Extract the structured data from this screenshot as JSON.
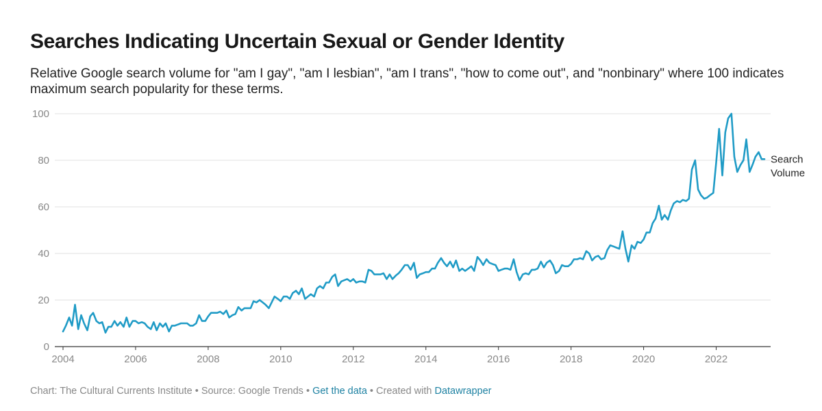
{
  "header": {
    "title": "Searches Indicating Uncertain Sexual or Gender Identity",
    "subtitle": "Relative Google search volume for \"am I gay\", \"am I lesbian\", \"am I trans\", \"how to come out\", and \"nonbinary\" where 100 indicates maximum search popularity for these terms."
  },
  "footer": {
    "credit": "Chart: The Cultural Currents Institute",
    "sep1": " • ",
    "source": "Source: Google Trends",
    "sep2": " • ",
    "get_data": "Get the data",
    "sep3": " • ",
    "created_with": "Created with ",
    "datawrapper": "Datawrapper"
  },
  "colors": {
    "line": "#1f9bc6",
    "grid": "#e2e2e2",
    "axis": "#333333",
    "link": "#1d81a2"
  },
  "chart_data": {
    "type": "line",
    "x_unit": "year",
    "xlim": [
      2004.0,
      2023.5
    ],
    "ylim": [
      0,
      100
    ],
    "x_ticks": [
      2004,
      2006,
      2008,
      2010,
      2012,
      2014,
      2016,
      2018,
      2020,
      2022
    ],
    "x_tick_labels": [
      "2004",
      "2006",
      "2008",
      "2010",
      "2012",
      "2014",
      "2016",
      "2018",
      "2020",
      "2022"
    ],
    "y_ticks": [
      0,
      20,
      40,
      60,
      80,
      100
    ],
    "y_tick_labels": [
      "0",
      "20",
      "40",
      "60",
      "80",
      "100"
    ],
    "grid": "horizontal",
    "series": [
      {
        "name": "Search Volume",
        "label_lines": [
          "Search",
          "Volume"
        ],
        "values": [
          [
            2004.0,
            6.5
          ],
          [
            2004.08,
            9
          ],
          [
            2004.17,
            12.5
          ],
          [
            2004.25,
            9
          ],
          [
            2004.33,
            18
          ],
          [
            2004.42,
            7.5
          ],
          [
            2004.5,
            13.5
          ],
          [
            2004.58,
            10
          ],
          [
            2004.67,
            7
          ],
          [
            2004.75,
            13
          ],
          [
            2004.83,
            14.5
          ],
          [
            2004.92,
            11
          ],
          [
            2005.0,
            10
          ],
          [
            2005.08,
            10.5
          ],
          [
            2005.17,
            6
          ],
          [
            2005.25,
            8.5
          ],
          [
            2005.33,
            8.5
          ],
          [
            2005.42,
            11
          ],
          [
            2005.5,
            9
          ],
          [
            2005.58,
            10.5
          ],
          [
            2005.67,
            8.5
          ],
          [
            2005.75,
            12.5
          ],
          [
            2005.83,
            8.5
          ],
          [
            2005.92,
            11
          ],
          [
            2006.0,
            11
          ],
          [
            2006.08,
            10
          ],
          [
            2006.17,
            10.5
          ],
          [
            2006.25,
            10
          ],
          [
            2006.33,
            8.5
          ],
          [
            2006.42,
            7.5
          ],
          [
            2006.5,
            10.5
          ],
          [
            2006.58,
            7
          ],
          [
            2006.67,
            10
          ],
          [
            2006.75,
            8.5
          ],
          [
            2006.83,
            10
          ],
          [
            2006.92,
            6.5
          ],
          [
            2007.0,
            9
          ],
          [
            2007.08,
            9
          ],
          [
            2007.17,
            9.5
          ],
          [
            2007.25,
            10
          ],
          [
            2007.33,
            10
          ],
          [
            2007.42,
            10
          ],
          [
            2007.5,
            9
          ],
          [
            2007.58,
            9
          ],
          [
            2007.67,
            10
          ],
          [
            2007.75,
            13.5
          ],
          [
            2007.83,
            11
          ],
          [
            2007.92,
            11
          ],
          [
            2008.0,
            13
          ],
          [
            2008.08,
            14.5
          ],
          [
            2008.17,
            14.5
          ],
          [
            2008.25,
            14.5
          ],
          [
            2008.33,
            15
          ],
          [
            2008.42,
            14
          ],
          [
            2008.5,
            15.5
          ],
          [
            2008.58,
            12.5
          ],
          [
            2008.67,
            13.5
          ],
          [
            2008.75,
            14
          ],
          [
            2008.83,
            17
          ],
          [
            2008.92,
            15.5
          ],
          [
            2009.0,
            16.5
          ],
          [
            2009.08,
            16.5
          ],
          [
            2009.17,
            16.5
          ],
          [
            2009.25,
            19.5
          ],
          [
            2009.33,
            19
          ],
          [
            2009.42,
            20
          ],
          [
            2009.5,
            19
          ],
          [
            2009.58,
            18
          ],
          [
            2009.67,
            16.5
          ],
          [
            2009.75,
            19
          ],
          [
            2009.83,
            21.5
          ],
          [
            2009.92,
            20.5
          ],
          [
            2010.0,
            19.5
          ],
          [
            2010.08,
            21.5
          ],
          [
            2010.17,
            21.5
          ],
          [
            2010.25,
            20.5
          ],
          [
            2010.33,
            23
          ],
          [
            2010.42,
            24
          ],
          [
            2010.5,
            22.5
          ],
          [
            2010.58,
            25
          ],
          [
            2010.67,
            20.5
          ],
          [
            2010.75,
            21.5
          ],
          [
            2010.83,
            22.5
          ],
          [
            2010.92,
            21.5
          ],
          [
            2011.0,
            25
          ],
          [
            2011.08,
            26
          ],
          [
            2011.17,
            25
          ],
          [
            2011.25,
            27.5
          ],
          [
            2011.33,
            27.5
          ],
          [
            2011.42,
            30
          ],
          [
            2011.5,
            31
          ],
          [
            2011.58,
            26
          ],
          [
            2011.67,
            28
          ],
          [
            2011.75,
            28.5
          ],
          [
            2011.83,
            29
          ],
          [
            2011.92,
            28
          ],
          [
            2012.0,
            29
          ],
          [
            2012.08,
            27.5
          ],
          [
            2012.17,
            28
          ],
          [
            2012.25,
            28
          ],
          [
            2012.33,
            27.5
          ],
          [
            2012.42,
            33
          ],
          [
            2012.5,
            32.5
          ],
          [
            2012.58,
            31
          ],
          [
            2012.67,
            31
          ],
          [
            2012.75,
            31
          ],
          [
            2012.83,
            31.5
          ],
          [
            2012.92,
            29
          ],
          [
            2013.0,
            31
          ],
          [
            2013.08,
            29
          ],
          [
            2013.17,
            30.5
          ],
          [
            2013.25,
            31.5
          ],
          [
            2013.33,
            33
          ],
          [
            2013.42,
            35
          ],
          [
            2013.5,
            35
          ],
          [
            2013.58,
            33
          ],
          [
            2013.67,
            36
          ],
          [
            2013.75,
            29.5
          ],
          [
            2013.83,
            31
          ],
          [
            2013.92,
            31.5
          ],
          [
            2014.0,
            32
          ],
          [
            2014.08,
            32
          ],
          [
            2014.17,
            33.5
          ],
          [
            2014.25,
            33.5
          ],
          [
            2014.33,
            36
          ],
          [
            2014.42,
            38
          ],
          [
            2014.5,
            36
          ],
          [
            2014.58,
            34.5
          ],
          [
            2014.67,
            36.5
          ],
          [
            2014.75,
            34
          ],
          [
            2014.83,
            37
          ],
          [
            2014.92,
            32.5
          ],
          [
            2015.0,
            33.5
          ],
          [
            2015.08,
            32.5
          ],
          [
            2015.17,
            33.5
          ],
          [
            2015.25,
            34.5
          ],
          [
            2015.33,
            32.5
          ],
          [
            2015.42,
            38.5
          ],
          [
            2015.5,
            37
          ],
          [
            2015.58,
            35
          ],
          [
            2015.67,
            37.5
          ],
          [
            2015.75,
            36
          ],
          [
            2015.83,
            35.5
          ],
          [
            2015.92,
            35
          ],
          [
            2016.0,
            32.5
          ],
          [
            2016.08,
            33
          ],
          [
            2016.17,
            33.5
          ],
          [
            2016.25,
            33.5
          ],
          [
            2016.33,
            33
          ],
          [
            2016.42,
            37.5
          ],
          [
            2016.5,
            32
          ],
          [
            2016.58,
            28.5
          ],
          [
            2016.67,
            31
          ],
          [
            2016.75,
            31.5
          ],
          [
            2016.83,
            31
          ],
          [
            2016.92,
            33
          ],
          [
            2017.0,
            33
          ],
          [
            2017.08,
            33.5
          ],
          [
            2017.17,
            36.5
          ],
          [
            2017.25,
            34
          ],
          [
            2017.33,
            36
          ],
          [
            2017.42,
            37
          ],
          [
            2017.5,
            35
          ],
          [
            2017.58,
            31.5
          ],
          [
            2017.67,
            32.5
          ],
          [
            2017.75,
            35
          ],
          [
            2017.83,
            34.5
          ],
          [
            2017.92,
            34.5
          ],
          [
            2018.0,
            35.5
          ],
          [
            2018.08,
            37.5
          ],
          [
            2018.17,
            37.5
          ],
          [
            2018.25,
            38
          ],
          [
            2018.33,
            37.5
          ],
          [
            2018.42,
            41
          ],
          [
            2018.5,
            40
          ],
          [
            2018.58,
            37
          ],
          [
            2018.67,
            38.5
          ],
          [
            2018.75,
            39
          ],
          [
            2018.83,
            37.5
          ],
          [
            2018.92,
            38
          ],
          [
            2019.0,
            41.5
          ],
          [
            2019.08,
            43.5
          ],
          [
            2019.17,
            43
          ],
          [
            2019.25,
            42.5
          ],
          [
            2019.33,
            42
          ],
          [
            2019.42,
            49.5
          ],
          [
            2019.5,
            42
          ],
          [
            2019.58,
            36.5
          ],
          [
            2019.67,
            43.5
          ],
          [
            2019.75,
            42
          ],
          [
            2019.83,
            45
          ],
          [
            2019.92,
            44.5
          ],
          [
            2020.0,
            46
          ],
          [
            2020.08,
            49
          ],
          [
            2020.17,
            49
          ],
          [
            2020.25,
            53
          ],
          [
            2020.33,
            55
          ],
          [
            2020.42,
            60.5
          ],
          [
            2020.5,
            54.5
          ],
          [
            2020.58,
            56.5
          ],
          [
            2020.67,
            54.5
          ],
          [
            2020.75,
            58.5
          ],
          [
            2020.83,
            61.5
          ],
          [
            2020.92,
            62.5
          ],
          [
            2021.0,
            62
          ],
          [
            2021.08,
            63
          ],
          [
            2021.17,
            62.5
          ],
          [
            2021.25,
            63.5
          ],
          [
            2021.33,
            76
          ],
          [
            2021.42,
            80
          ],
          [
            2021.5,
            67.5
          ],
          [
            2021.58,
            65
          ],
          [
            2021.67,
            63.5
          ],
          [
            2021.75,
            64
          ],
          [
            2021.83,
            65
          ],
          [
            2021.92,
            66
          ],
          [
            2022.0,
            79
          ],
          [
            2022.08,
            93.5
          ],
          [
            2022.17,
            73.5
          ],
          [
            2022.25,
            92
          ],
          [
            2022.33,
            98
          ],
          [
            2022.42,
            100
          ],
          [
            2022.5,
            81.5
          ],
          [
            2022.58,
            75
          ],
          [
            2022.67,
            78
          ],
          [
            2022.75,
            80
          ],
          [
            2022.83,
            89
          ],
          [
            2022.92,
            75
          ],
          [
            2023.0,
            78
          ],
          [
            2023.08,
            81.5
          ],
          [
            2023.17,
            83.5
          ],
          [
            2023.25,
            80.5
          ],
          [
            2023.33,
            80.5
          ]
        ]
      }
    ]
  }
}
